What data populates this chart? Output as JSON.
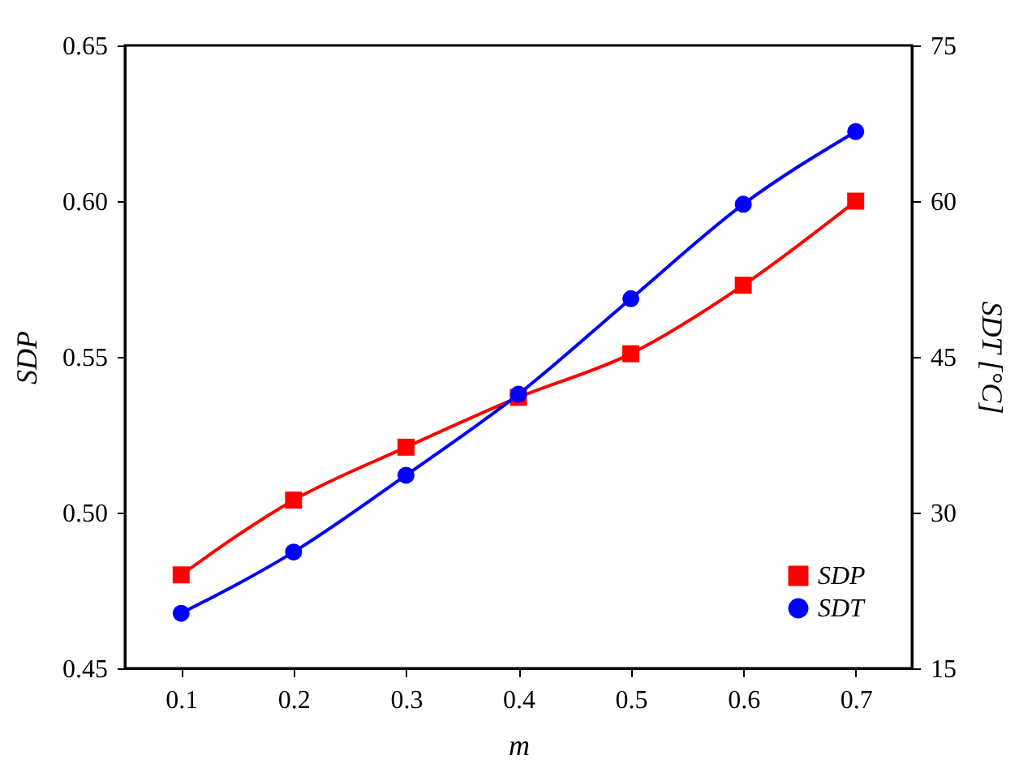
{
  "chart_data": {
    "type": "line",
    "xlabel": "m",
    "ylabel": "SDP",
    "y2label": "SDT [°C]",
    "x": [
      0.1,
      0.2,
      0.3,
      0.4,
      0.5,
      0.6,
      0.7
    ],
    "xlim": [
      0.05,
      0.75
    ],
    "xticks": [
      0.1,
      0.2,
      0.3,
      0.4,
      0.5,
      0.6,
      0.7
    ],
    "ylim": [
      0.45,
      0.65
    ],
    "yticks": [
      0.45,
      {
        "value": 0.5,
        "label": "0.50"
      },
      0.55,
      {
        "value": 0.6,
        "label": "0.60"
      },
      0.65
    ],
    "y2lim": [
      15,
      75
    ],
    "y2ticks": [
      15,
      30,
      45,
      60,
      75
    ],
    "legend": "bottom right",
    "grid": false,
    "line_style": "solid",
    "series": [
      {
        "name": "SDP",
        "color": "#ff0000",
        "marker": "square",
        "values": [
          0.48,
          0.504,
          0.521,
          0.537,
          0.551,
          0.573,
          0.6
        ]
      },
      {
        "name": "SDT",
        "color": "#0000ff",
        "marker": "circle",
        "axis": "y2",
        "values": [
          20.3,
          26.2,
          33.6,
          41.4,
          50.6,
          59.7,
          66.7
        ]
      }
    ]
  }
}
